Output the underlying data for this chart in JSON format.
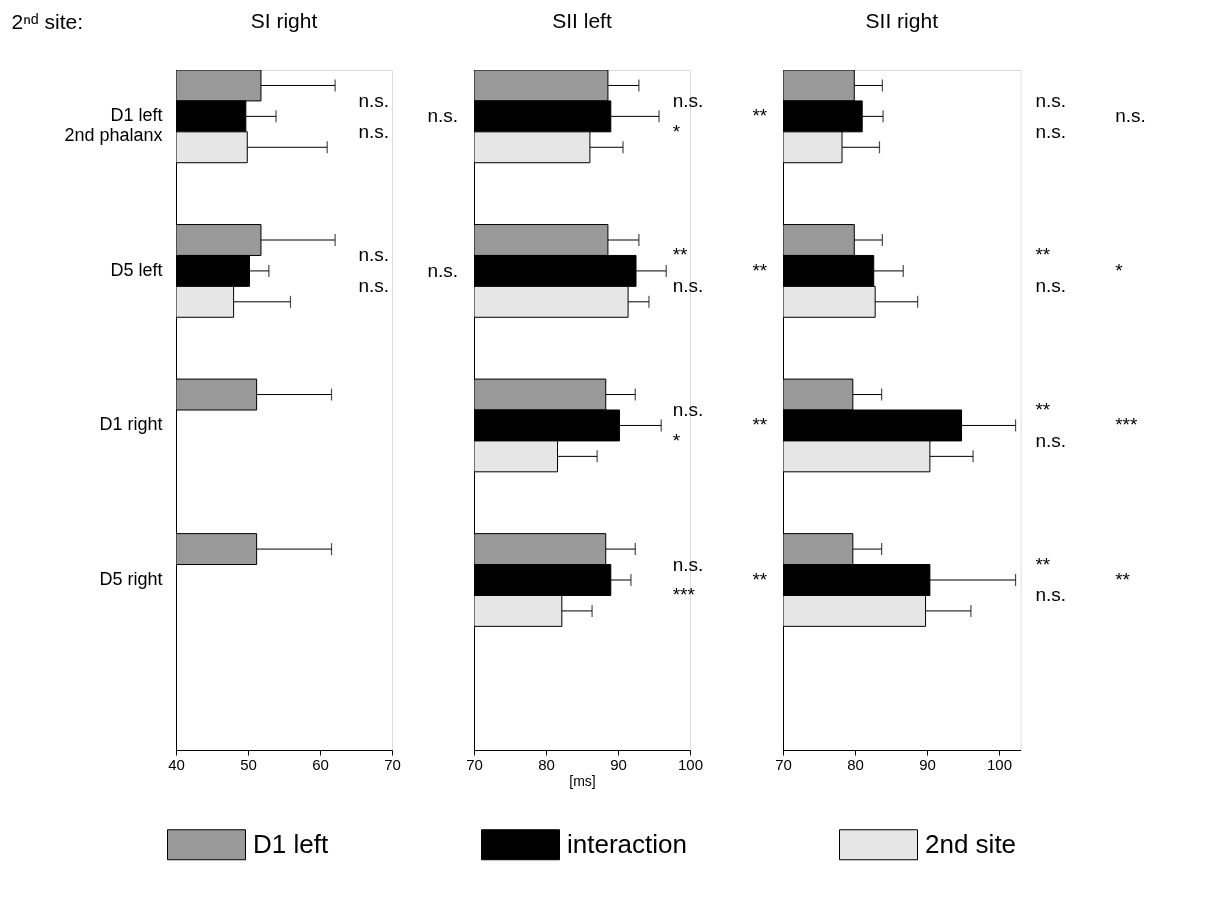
{
  "chart_data": [
    {
      "type": "bar",
      "orientation": "horizontal",
      "title": "SI right",
      "ylabel": "2ⁿᵈ site:",
      "legend": "bottom",
      "categories": [
        "D1 left\n2nd phalanx",
        "D5 left",
        "D1 right",
        "D5 right"
      ],
      "xlim": [
        40,
        70
      ],
      "xticks": [
        40,
        50,
        60,
        70
      ],
      "series": [
        {
          "name": "D1 left",
          "color": "#999999",
          "values": [
            51.8,
            51.8,
            51.2,
            51.2
          ],
          "errors": [
            10.3,
            10.3,
            10.4,
            10.4
          ]
        },
        {
          "name": "interaction",
          "color": "#000000",
          "values": [
            49.7,
            50.2,
            null,
            null
          ],
          "errors": [
            4.2,
            2.7,
            null,
            null
          ]
        },
        {
          "name": "2nd site",
          "color": "#e6e6e6",
          "values": [
            49.9,
            48.0,
            null,
            null
          ],
          "errors": [
            11.1,
            7.9,
            null,
            null
          ]
        }
      ],
      "annotations": [
        "n.s.",
        "n.s.",
        "n.s.",
        "n.s.",
        "n.s.",
        "n.s."
      ]
    },
    {
      "type": "bar",
      "orientation": "horizontal",
      "title": "SII left",
      "xlabel": "[ms]",
      "tick_labels": "x",
      "xlim": [
        70,
        100
      ],
      "xticks": [
        70,
        80,
        90,
        100
      ],
      "series": [
        {
          "name": "D1 left",
          "color": "#999999",
          "values": [
            88.6,
            88.6,
            88.3,
            88.3
          ],
          "errors": [
            4.3,
            4.3,
            4.1,
            4.1
          ]
        },
        {
          "name": "interaction",
          "color": "#000000",
          "values": [
            89.0,
            92.5,
            90.2,
            89.0
          ],
          "errors": [
            6.7,
            4.2,
            5.8,
            2.8
          ]
        },
        {
          "name": "2nd site",
          "color": "#e6e6e6",
          "values": [
            86.1,
            91.4,
            81.6,
            82.2
          ],
          "errors": [
            4.6,
            2.9,
            5.5,
            4.2
          ]
        }
      ],
      "annotations": [
        "n.s.",
        "*",
        "**",
        "**",
        "n.s.",
        "**",
        "n.s.",
        "*",
        "**",
        "n.s.",
        "***",
        "**"
      ]
    },
    {
      "type": "bar",
      "orientation": "horizontal",
      "title": "SII right",
      "tick_labels": "x",
      "xlim": [
        70,
        103
      ],
      "xticks": [
        70,
        80,
        90,
        100
      ],
      "series": [
        {
          "name": "D1 left",
          "color": "#999999",
          "values": [
            79.9,
            79.9,
            79.7,
            79.7
          ],
          "errors": [
            3.9,
            3.9,
            4.0,
            4.0
          ]
        },
        {
          "name": "interaction",
          "color": "#000000",
          "values": [
            81.0,
            82.6,
            94.8,
            90.4
          ],
          "errors": [
            2.9,
            4.1,
            7.5,
            11.9
          ]
        },
        {
          "name": "2nd site",
          "color": "#e6e6e6",
          "values": [
            78.2,
            82.8,
            90.4,
            89.8
          ],
          "errors": [
            5.2,
            5.9,
            6.0,
            6.3
          ]
        }
      ],
      "annotations": [
        "n.s.",
        "n.s.",
        "n.s.",
        "**",
        "n.s.",
        "*",
        "**",
        "n.s.",
        "***",
        "**",
        "n.s.",
        "**"
      ]
    }
  ]
}
